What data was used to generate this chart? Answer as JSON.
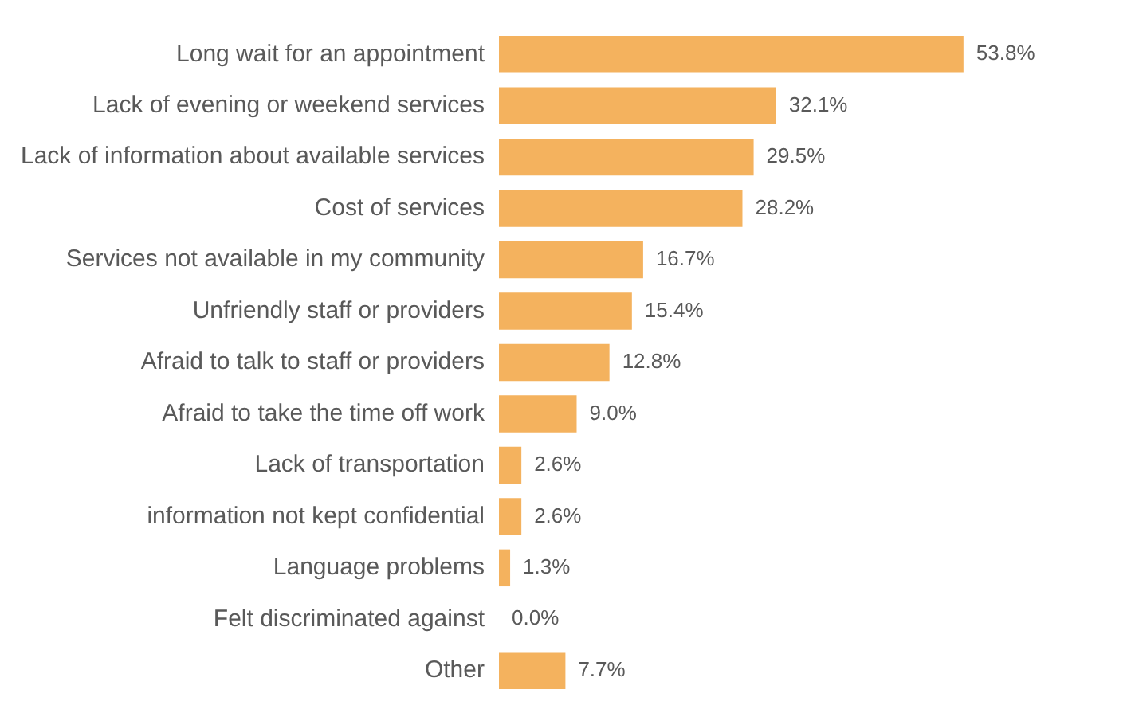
{
  "chart_data": {
    "type": "bar",
    "orientation": "horizontal",
    "categories": [
      "Long wait for an appointment",
      "Lack of evening or weekend services",
      "Lack of information about available services",
      "Cost of services",
      "Services not available in my community",
      "Unfriendly staff or providers",
      "Afraid to talk to staff or providers",
      "Afraid to take the time off work",
      "Lack of transportation",
      "information not kept confidential",
      "Language problems",
      "Felt discriminated against",
      "Other"
    ],
    "values": [
      53.8,
      32.1,
      29.5,
      28.2,
      16.7,
      15.4,
      12.8,
      9.0,
      2.6,
      2.6,
      1.3,
      0.0,
      7.7
    ],
    "value_labels": [
      "53.8%",
      "32.1%",
      "29.5%",
      "28.2%",
      "16.7%",
      "15.4%",
      "12.8%",
      "9.0%",
      "2.6%",
      "2.6%",
      "1.3%",
      "0.0%",
      "7.7%"
    ],
    "color": "#f4b25e"
  }
}
